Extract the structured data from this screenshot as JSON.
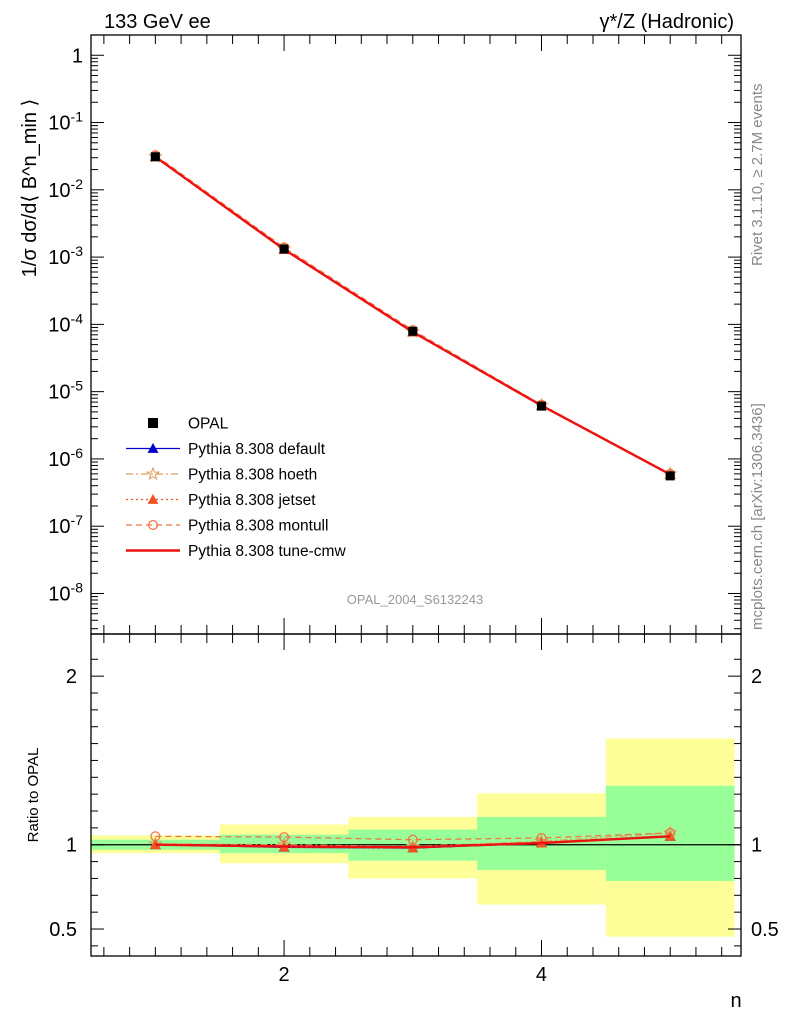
{
  "header": {
    "left": "133 GeV ee",
    "right": "γ*/Z (Hadronic)"
  },
  "side_label": {
    "top": "Rivet 3.1.10, ≥ 2.7M events",
    "bottom": "mcplots.cern.ch [arXiv:1306.3436]"
  },
  "watermark": "OPAL_2004_S6132243",
  "chart_data": [
    {
      "type": "line",
      "panel": "main",
      "ylabel": "1/σ dσ/d⟨ B^n_min ⟩",
      "yscale": "log",
      "ylim": [
        2.5e-09,
        2.0
      ],
      "xlim": [
        0.5,
        5.55
      ],
      "y_ticks": [
        {
          "v": 1,
          "t": "1"
        },
        {
          "v": 0.1,
          "t": "10^-1"
        },
        {
          "v": 0.01,
          "t": "10^-2"
        },
        {
          "v": 0.001,
          "t": "10^-3"
        },
        {
          "v": 0.0001,
          "t": "10^-4"
        },
        {
          "v": 1e-05,
          "t": "10^-5"
        },
        {
          "v": 1e-06,
          "t": "10^-6"
        },
        {
          "v": 1e-07,
          "t": "10^-7"
        },
        {
          "v": 1e-08,
          "t": "10^-8"
        }
      ],
      "x": [
        1,
        2,
        3,
        4,
        5
      ],
      "data": {
        "name": "OPAL",
        "values": [
          0.031,
          0.00132,
          7.9e-05,
          6.1e-06,
          5.6e-07
        ]
      },
      "series": [
        {
          "name": "Pythia 8.308 default",
          "color": "#0000cc",
          "dash": "solid",
          "marker": "triangle",
          "values": [
            0.031,
            0.0013,
            7.7e-05,
            6.2e-06,
            5.9e-07
          ]
        },
        {
          "name": "Pythia 8.308 hoeth",
          "color": "#e0a060",
          "dash": "dashdot",
          "marker": "star",
          "values": [
            0.0312,
            0.00133,
            7.8e-05,
            6.3e-06,
            6e-07
          ]
        },
        {
          "name": "Pythia 8.308 jetset",
          "color": "#ee5522",
          "dash": "dotted",
          "marker": "triangle",
          "values": [
            0.031,
            0.0013,
            7.7e-05,
            6.2e-06,
            5.9e-07
          ]
        },
        {
          "name": "Pythia 8.308 montull",
          "color": "#ee7744",
          "dash": "dashed",
          "marker": "circle",
          "values": [
            0.0326,
            0.00139,
            8.2e-05,
            6.4e-06,
            6e-07
          ]
        },
        {
          "name": "Pythia 8.308 tune-cmw",
          "color": "#ee1111",
          "dash": "solid",
          "marker": "none",
          "values": [
            0.031,
            0.0013,
            7.7e-05,
            6.2e-06,
            5.9e-07
          ]
        }
      ],
      "legend_position": "bottom-left"
    },
    {
      "type": "line",
      "panel": "ratio",
      "ylabel": "Ratio to OPAL",
      "xlabel": "n",
      "ylim": [
        0.34,
        2.25
      ],
      "xlim": [
        0.5,
        5.55
      ],
      "y_ticks": [
        {
          "v": 0.5,
          "t": "0.5"
        },
        {
          "v": 1,
          "t": "1"
        },
        {
          "v": 2,
          "t": "2"
        }
      ],
      "x_ticks": [
        {
          "v": 2,
          "t": "2"
        },
        {
          "v": 4,
          "t": "4"
        }
      ],
      "x": [
        1,
        2,
        3,
        4,
        5
      ],
      "bands": [
        {
          "x0": 0.5,
          "x1": 1.5,
          "inner": [
            0.97,
            1.03
          ],
          "outer": [
            0.95,
            1.055
          ]
        },
        {
          "x0": 1.5,
          "x1": 2.5,
          "inner": [
            0.95,
            1.06
          ],
          "outer": [
            0.89,
            1.12
          ]
        },
        {
          "x0": 2.5,
          "x1": 3.5,
          "inner": [
            0.905,
            1.09
          ],
          "outer": [
            0.8,
            1.165
          ]
        },
        {
          "x0": 3.5,
          "x1": 4.5,
          "inner": [
            0.85,
            1.165
          ],
          "outer": [
            0.645,
            1.305
          ]
        },
        {
          "x0": 4.5,
          "x1": 5.5,
          "inner": [
            0.785,
            1.35
          ],
          "outer": [
            0.455,
            1.63
          ]
        }
      ],
      "series": [
        {
          "name": "Pythia 8.308 default",
          "color": "#0000cc",
          "dash": "solid",
          "marker": "triangle",
          "values": [
            1.0,
            0.985,
            0.98,
            1.01,
            1.05
          ]
        },
        {
          "name": "Pythia 8.308 hoeth",
          "color": "#e0a060",
          "dash": "dashdot",
          "marker": "star",
          "values": [
            1.005,
            1.0,
            0.99,
            1.02,
            1.07
          ]
        },
        {
          "name": "Pythia 8.308 jetset",
          "color": "#ee5522",
          "dash": "dotted",
          "marker": "triangle",
          "values": [
            1.0,
            0.985,
            0.98,
            1.01,
            1.05
          ]
        },
        {
          "name": "Pythia 8.308 montull",
          "color": "#ee7744",
          "dash": "dashed",
          "marker": "circle",
          "values": [
            1.05,
            1.045,
            1.03,
            1.04,
            1.07
          ]
        },
        {
          "name": "Pythia 8.308 tune-cmw",
          "color": "#ee1111",
          "dash": "solid",
          "marker": "none",
          "values": [
            1.0,
            0.99,
            0.985,
            1.01,
            1.05
          ]
        }
      ]
    }
  ]
}
